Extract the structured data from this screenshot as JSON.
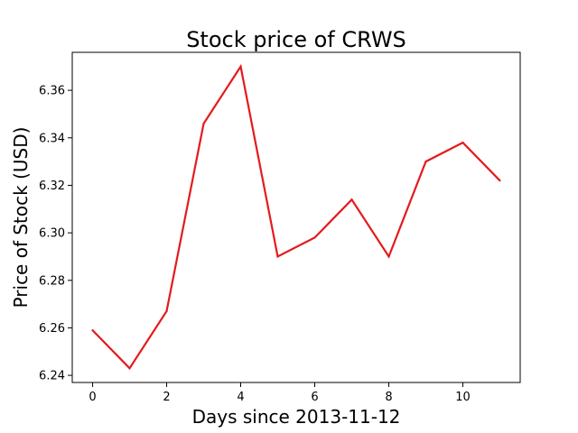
{
  "chart_data": {
    "type": "line",
    "title": "Stock price of CRWS",
    "xlabel": "Days since 2013-11-12",
    "ylabel": "Price of Stock (USD)",
    "xlim": [
      -0.55,
      11.55
    ],
    "ylim": [
      6.237,
      6.376
    ],
    "xticks": [
      0,
      2,
      4,
      6,
      8,
      10
    ],
    "yticks": [
      6.24,
      6.26,
      6.28,
      6.3,
      6.32,
      6.34,
      6.36
    ],
    "ytick_labels": [
      "6.24",
      "6.26",
      "6.28",
      "6.30",
      "6.32",
      "6.34",
      "6.36"
    ],
    "grid": false,
    "series": [
      {
        "color": "#e41a1c",
        "x": [
          0,
          1,
          2,
          3,
          4,
          5,
          6,
          7,
          8,
          9,
          10,
          11
        ],
        "y": [
          6.259,
          6.243,
          6.267,
          6.346,
          6.37,
          6.29,
          6.298,
          6.314,
          6.29,
          6.33,
          6.338,
          6.322
        ]
      }
    ]
  }
}
